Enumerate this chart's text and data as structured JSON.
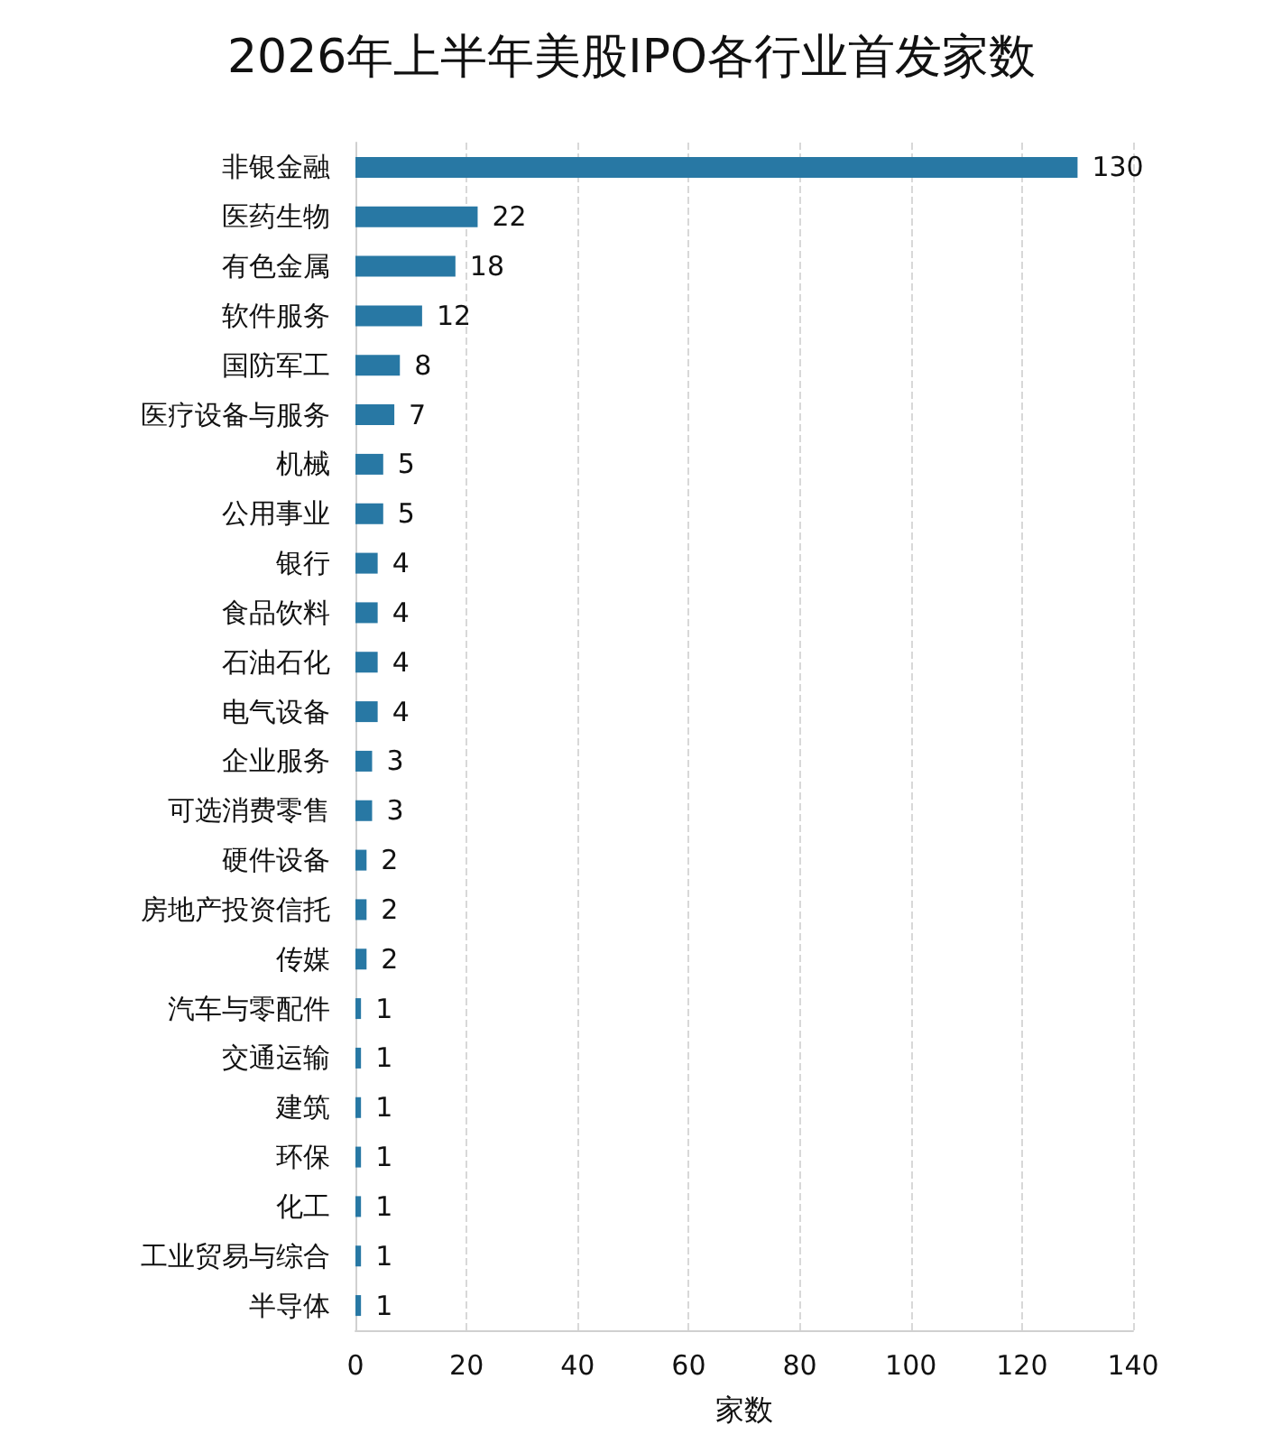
{
  "chart_data": {
    "type": "bar",
    "orientation": "horizontal",
    "title": "2026年上半年美股IPO各行业首发家数",
    "xlabel": "家数",
    "categories": [
      "非银金融",
      "医药生物",
      "有色金属",
      "软件服务",
      "国防军工",
      "医疗设备与服务",
      "机械",
      "公用事业",
      "银行",
      "食品饮料",
      "石油石化",
      "电气设备",
      "企业服务",
      "可选消费零售",
      "硬件设备",
      "房地产投资信托",
      "传媒",
      "汽车与零配件",
      "交通运输",
      "建筑",
      "环保",
      "化工",
      "工业贸易与综合",
      "半导体"
    ],
    "values": [
      130,
      22,
      18,
      12,
      8,
      7,
      5,
      5,
      4,
      4,
      4,
      4,
      3,
      3,
      2,
      2,
      2,
      1,
      1,
      1,
      1,
      1,
      1,
      1
    ],
    "color": "#2878a4",
    "xlim": [
      0,
      140
    ],
    "xticks": [
      0,
      20,
      40,
      60,
      80,
      100,
      120,
      140
    ],
    "grid": "x",
    "data_labels": true
  }
}
